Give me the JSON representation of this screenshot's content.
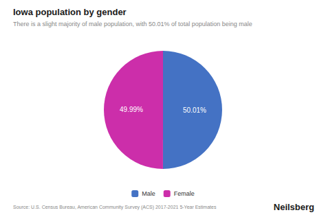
{
  "chart_data": {
    "type": "pie",
    "title": "Iowa population by gender",
    "subtitle": "There is a slight majority of male population, with 50.01% of total population being male",
    "categories": [
      "Male",
      "Female"
    ],
    "values": [
      50.01,
      49.99
    ],
    "value_labels": [
      "50.01%",
      "49.99%"
    ],
    "colors": [
      "#4472C4",
      "#CC2EAA"
    ],
    "data_labels": true,
    "legend": "bottom",
    "source": "Source: U.S. Census Bureau, American Community Survey (ACS) 2017-2021 5-Year Estimates",
    "brand": "Neilsberg"
  }
}
